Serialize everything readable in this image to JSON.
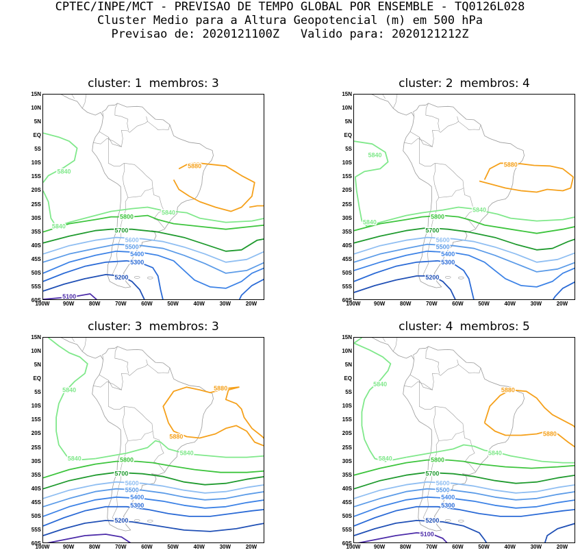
{
  "header": {
    "line1": "CPTEC/INPE/MCT - PREVISAO DE TEMPO GLOBAL POR ENSEMBLE - TQ0126L028",
    "line2": "Cluster Medio para a Altura Geopotencial (m) em 500 hPa",
    "line3_label1": "Previsao de:",
    "line3_value1": "2020121100Z",
    "line3_label2": "Valido para:",
    "line3_value2": "2020121212Z"
  },
  "axes": {
    "lat_labels": [
      "15N",
      "10N",
      "5N",
      "EQ",
      "5S",
      "10S",
      "15S",
      "20S",
      "25S",
      "30S",
      "35S",
      "40S",
      "45S",
      "50S",
      "55S",
      "60S"
    ],
    "lon_labels": [
      "100W",
      "90W",
      "80W",
      "70W",
      "60W",
      "50W",
      "40W",
      "30W",
      "20W"
    ]
  },
  "colors": {
    "5100": "#4b2aa8",
    "5200": "#1f4fb5",
    "5300": "#2a6ad6",
    "5400": "#3c82e6",
    "5500": "#5b9be8",
    "5600": "#8fbef2",
    "5700": "#1f9a2e",
    "5800": "#3cc43c",
    "5840": "#7fe88a",
    "5880": "#f5a01a",
    "coast": "#999999"
  },
  "panels": [
    {
      "cluster_label": "cluster:",
      "cluster": "1",
      "members_label": "membros:",
      "members": "3",
      "labels": [
        "5840",
        "5840",
        "5880",
        "5840",
        "5800",
        "5700",
        "5600",
        "5500",
        "5400",
        "5300",
        "5200",
        "5100"
      ]
    },
    {
      "cluster_label": "cluster:",
      "cluster": "2",
      "members_label": "membros:",
      "members": "4",
      "labels": [
        "5840",
        "5840",
        "5880",
        "5840",
        "5800",
        "5700",
        "5600",
        "5500",
        "5400",
        "5300",
        "5200"
      ]
    },
    {
      "cluster_label": "cluster:",
      "cluster": "3",
      "members_label": "membros:",
      "members": "3",
      "labels": [
        "5840",
        "5840",
        "5880",
        "5880",
        "5840",
        "5800",
        "5700",
        "5600",
        "5500",
        "5400",
        "5300",
        "5200"
      ]
    },
    {
      "cluster_label": "cluster:",
      "cluster": "4",
      "members_label": "membros:",
      "members": "5",
      "labels": [
        "5840",
        "5840",
        "5880",
        "5880",
        "5840",
        "5800",
        "5700",
        "5600",
        "5500",
        "5400",
        "5300",
        "5200",
        "5100"
      ]
    }
  ]
}
